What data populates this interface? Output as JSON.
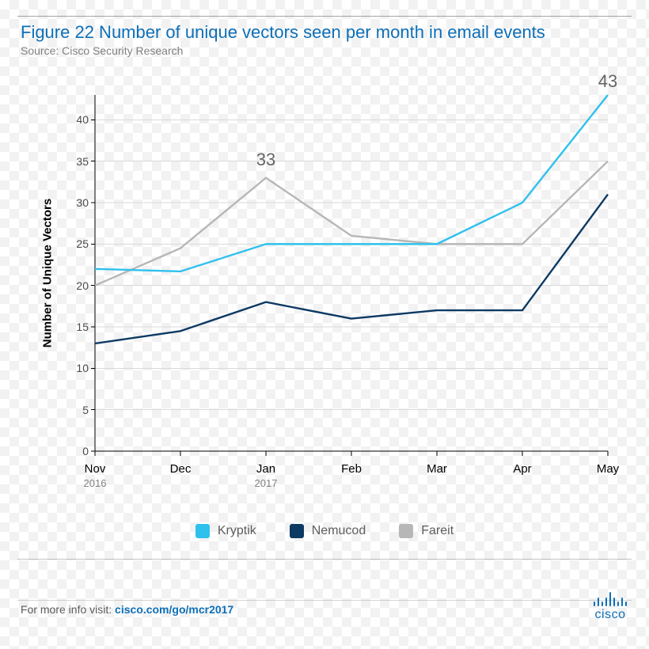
{
  "title": "Figure 22  Number of unique vectors seen per month in email events",
  "source": "Source: Cisco Security Research",
  "chart": {
    "type": "line",
    "y_axis": {
      "label": "Number of Unique Vectors",
      "min": 0,
      "max": 43,
      "ticks": [
        0,
        5,
        10,
        15,
        20,
        25,
        30,
        35,
        40
      ],
      "font_size": 14
    },
    "x_axis": {
      "categories": [
        "Nov",
        "Dec",
        "Jan",
        "Feb",
        "Mar",
        "Apr",
        "May"
      ],
      "years": {
        "Nov": "2016",
        "Jan": "2017"
      },
      "font_size": 15
    },
    "series": [
      {
        "name": "Kryptik",
        "color": "#2fc1ed",
        "values": [
          22,
          21.7,
          25,
          25,
          25,
          30,
          43
        ]
      },
      {
        "name": "Nemucod",
        "color": "#0c3a63",
        "values": [
          13,
          14.5,
          18,
          16,
          17,
          17,
          31
        ]
      },
      {
        "name": "Fareit",
        "color": "#b7b7b7",
        "values": [
          20,
          24.5,
          33,
          26,
          25,
          25,
          35
        ]
      }
    ],
    "annotations": [
      {
        "text": "33",
        "x_category": "Jan",
        "y_value": 33,
        "dy": -10
      },
      {
        "text": "43",
        "x_category": "May",
        "y_value": 43,
        "dy": -4
      }
    ],
    "grid_color": "#d9d9d9",
    "line_width": 2.4,
    "swatch_radius": 3
  },
  "footer": {
    "prefix": "For more info visit: ",
    "link_text": "cisco.com/go/mcr2017"
  },
  "brand": "cisco",
  "colors": {
    "title": "#0d6fb8",
    "source": "#808080",
    "axis": "#000000",
    "tick_label": "#4a4a4a",
    "year_label": "#838383",
    "annotation": "#656565",
    "footer_text": "#5b5b5b"
  }
}
